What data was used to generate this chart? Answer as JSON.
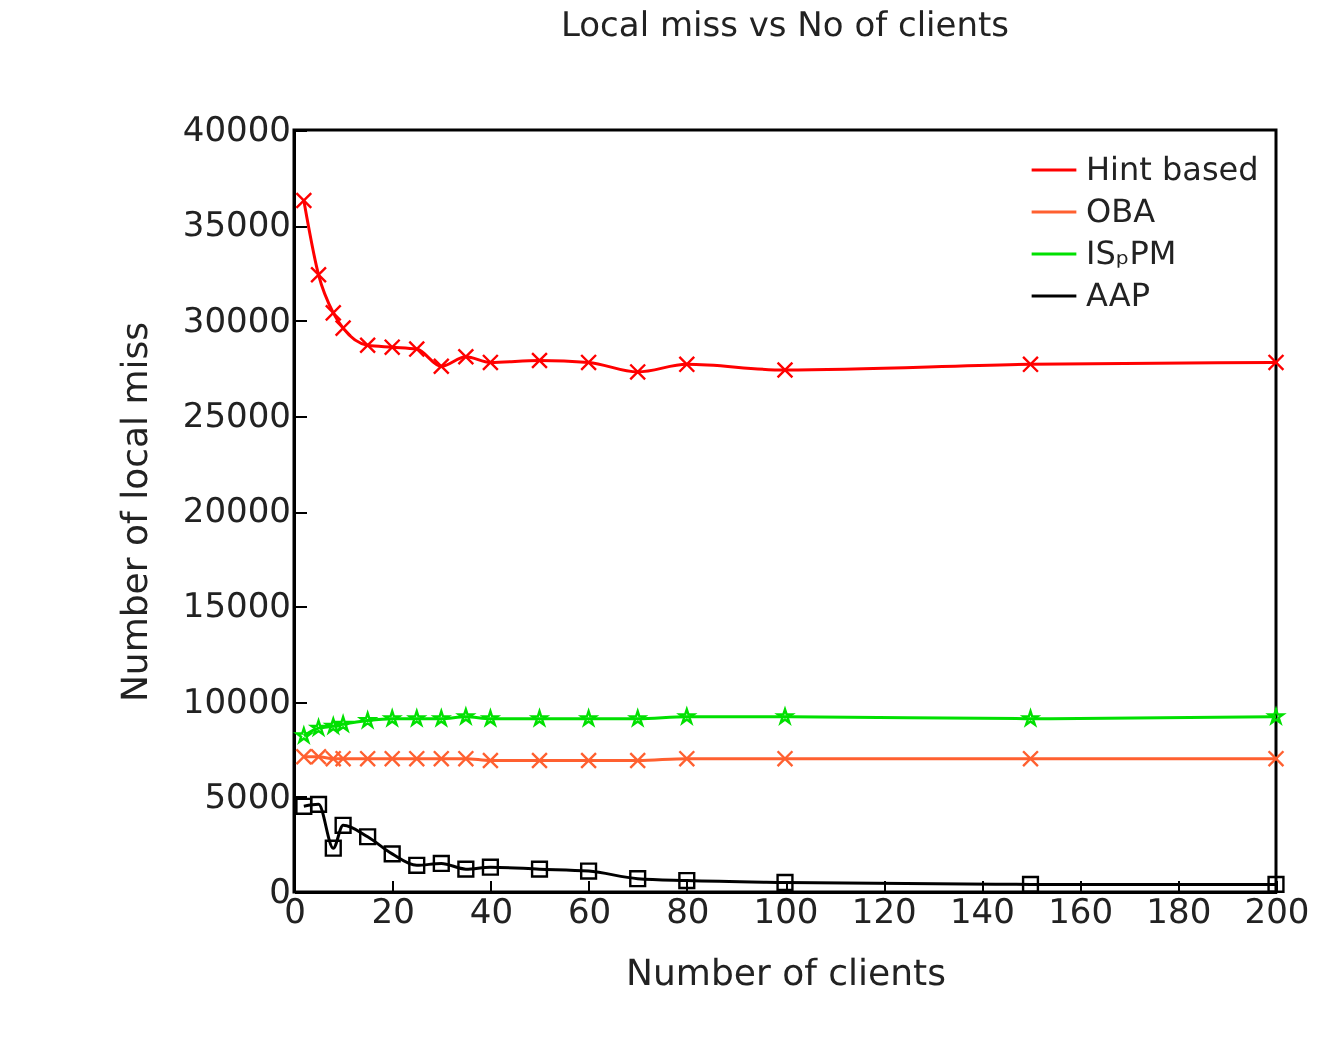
{
  "chart_data": {
    "type": "line",
    "title": "Local miss vs No of clients",
    "xlabel": "Number of clients",
    "ylabel": "Number of local miss",
    "x": [
      2,
      5,
      8,
      10,
      15,
      20,
      25,
      30,
      35,
      40,
      50,
      60,
      70,
      80,
      100,
      150,
      200
    ],
    "xlim": [
      0,
      200
    ],
    "xticks": [
      0,
      20,
      40,
      60,
      80,
      100,
      120,
      140,
      160,
      180,
      200
    ],
    "ylim": [
      0,
      40000
    ],
    "yticks": [
      0,
      5000,
      10000,
      15000,
      20000,
      25000,
      30000,
      35000,
      40000
    ],
    "grid": false,
    "legend": "top right",
    "series": [
      {
        "name": "Hint based",
        "color": "#ff0000",
        "marker": "cross",
        "values": [
          36300,
          32400,
          30400,
          29600,
          28700,
          28600,
          28500,
          27600,
          28100,
          27800,
          27900,
          27800,
          27300,
          27700,
          27400,
          27700,
          27800
        ]
      },
      {
        "name": "OBA",
        "color": "#ff6030",
        "marker": "cross",
        "values": [
          7100,
          7100,
          7000,
          7000,
          7000,
          7000,
          7000,
          7000,
          7000,
          6900,
          6900,
          6900,
          6900,
          7000,
          7000,
          7000,
          7000
        ]
      },
      {
        "name": "ISₚPM",
        "color": "#00e000",
        "marker": "star",
        "values": [
          8200,
          8600,
          8700,
          8800,
          9000,
          9100,
          9100,
          9100,
          9200,
          9100,
          9100,
          9100,
          9100,
          9200,
          9200,
          9100,
          9200
        ]
      },
      {
        "name": "AAP",
        "color": "#000000",
        "marker": "square",
        "values": [
          4500,
          4600,
          2300,
          3500,
          2900,
          2000,
          1400,
          1500,
          1200,
          1300,
          1200,
          1100,
          700,
          600,
          500,
          400,
          400
        ]
      }
    ]
  }
}
